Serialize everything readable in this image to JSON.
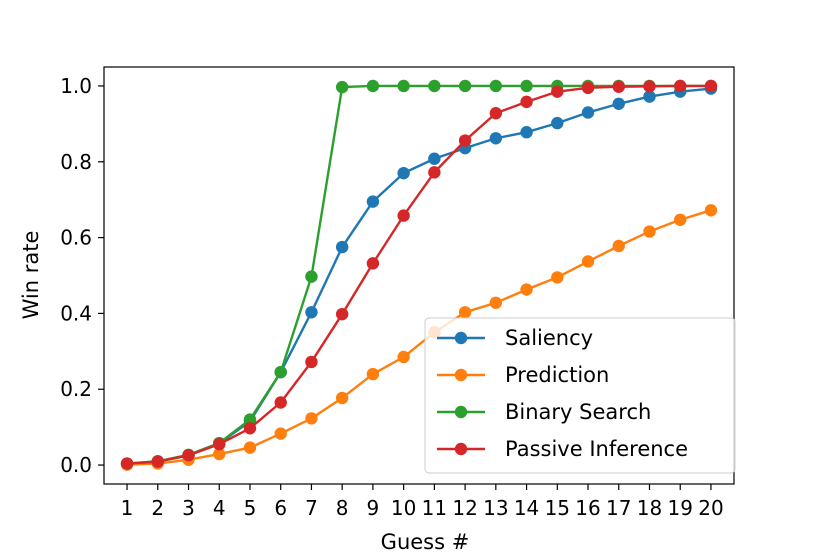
{
  "chart_data": {
    "type": "line",
    "xlabel": "Guess #",
    "ylabel": "Win rate",
    "x": [
      1,
      2,
      3,
      4,
      5,
      6,
      7,
      8,
      9,
      10,
      11,
      12,
      13,
      14,
      15,
      16,
      17,
      18,
      19,
      20
    ],
    "xticks": [
      "1",
      "2",
      "3",
      "4",
      "5",
      "6",
      "7",
      "8",
      "9",
      "10",
      "11",
      "12",
      "13",
      "14",
      "15",
      "16",
      "17",
      "18",
      "19",
      "20"
    ],
    "xlim": [
      0.25,
      20.75
    ],
    "ylim": [
      -0.05,
      1.05
    ],
    "yticks": [
      "0.0",
      "0.2",
      "0.4",
      "0.6",
      "0.8",
      "1.0"
    ],
    "yticks_values": [
      0.0,
      0.2,
      0.4,
      0.6,
      0.8,
      1.0
    ],
    "grid": false,
    "legend_position": "lower-right",
    "series": [
      {
        "name": "Saliency",
        "color": "#1f77b4",
        "values": [
          0.003,
          0.009,
          0.025,
          0.057,
          0.115,
          0.245,
          0.403,
          0.575,
          0.695,
          0.77,
          0.808,
          0.836,
          0.862,
          0.878,
          0.902,
          0.93,
          0.953,
          0.972,
          0.985,
          0.993
        ]
      },
      {
        "name": "Prediction",
        "color": "#ff7f0e",
        "values": [
          0.001,
          0.004,
          0.014,
          0.029,
          0.046,
          0.083,
          0.123,
          0.177,
          0.24,
          0.285,
          0.35,
          0.403,
          0.428,
          0.463,
          0.495,
          0.537,
          0.578,
          0.616,
          0.647,
          0.672
        ]
      },
      {
        "name": "Binary Search",
        "color": "#2ca02c",
        "values": [
          0.004,
          0.01,
          0.027,
          0.058,
          0.12,
          0.245,
          0.497,
          0.997,
          1.0,
          1.0,
          1.0,
          1.0,
          1.0,
          1.0,
          1.0,
          1.0,
          1.0,
          1.0,
          1.0,
          1.0
        ]
      },
      {
        "name": "Passive Inference",
        "color": "#d62728",
        "values": [
          0.004,
          0.009,
          0.026,
          0.055,
          0.097,
          0.165,
          0.272,
          0.398,
          0.532,
          0.658,
          0.772,
          0.856,
          0.928,
          0.958,
          0.985,
          0.995,
          0.998,
          0.999,
          1.0,
          1.0
        ]
      }
    ]
  }
}
